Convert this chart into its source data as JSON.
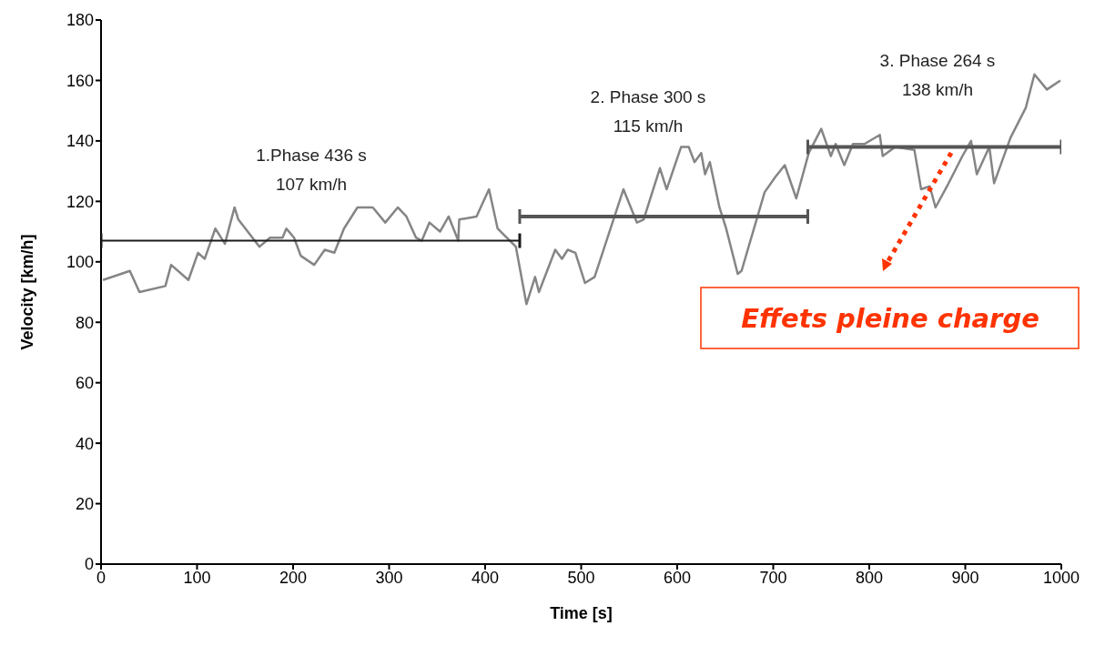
{
  "chart_data": {
    "type": "line",
    "xlabel": "Time [s]",
    "ylabel": "Velocity [km/h]",
    "xlim": [
      0,
      1000
    ],
    "ylim": [
      0,
      180
    ],
    "xticks": [
      0,
      100,
      200,
      300,
      400,
      500,
      600,
      700,
      800,
      900,
      1000
    ],
    "yticks": [
      0,
      20,
      40,
      60,
      80,
      100,
      120,
      140,
      160,
      180
    ],
    "grid": false,
    "marker": "none",
    "line_style": "solid",
    "series": [
      {
        "color": "#858585",
        "x": [
          2,
          30,
          40,
          67,
          73,
          91,
          101,
          108,
          119,
          129,
          139,
          143,
          165,
          176,
          189,
          193,
          201,
          208,
          222,
          233,
          243,
          253,
          267,
          283,
          296,
          309,
          318,
          328,
          334,
          342,
          353,
          362,
          372,
          373,
          391,
          404,
          413,
          432,
          443,
          452,
          456,
          473,
          480,
          486,
          494,
          504,
          514,
          544,
          558,
          565,
          582,
          589,
          604,
          612,
          618,
          625,
          629,
          634,
          644,
          651,
          663,
          667,
          691,
          702,
          712,
          724,
          737,
          750,
          760,
          765,
          774,
          783,
          795,
          811,
          814,
          827,
          847,
          854,
          863,
          869,
          881,
          897,
          906,
          912,
          925,
          930,
          947,
          963,
          972,
          985,
          999
        ],
        "values": [
          94,
          97,
          90,
          92,
          99,
          94,
          103,
          101,
          111,
          106,
          118,
          114,
          105,
          108,
          108,
          111,
          108,
          102,
          99,
          104,
          103,
          111,
          118,
          118,
          113,
          118,
          115,
          108,
          107,
          113,
          110,
          115,
          107,
          114,
          115,
          124,
          111,
          105,
          86,
          95,
          90,
          104,
          101,
          104,
          103,
          93,
          95,
          124,
          113,
          114,
          131,
          124,
          138,
          138,
          133,
          136,
          129,
          133,
          118,
          111,
          96,
          97,
          123,
          128,
          132,
          121,
          136,
          144,
          135,
          139,
          132,
          139,
          139,
          142,
          135,
          138,
          137,
          124,
          125,
          118,
          125,
          135,
          140,
          129,
          138,
          126,
          141,
          151,
          162,
          157,
          160
        ]
      },
      {
        "color": "#1a1a1a",
        "x": [
          0,
          436
        ],
        "values": [
          107,
          107
        ]
      },
      {
        "color": "#555555",
        "x": [
          436,
          736
        ],
        "values": [
          115,
          115
        ]
      },
      {
        "color": "#555555",
        "x": [
          736,
          1000
        ],
        "values": [
          138,
          138
        ]
      }
    ],
    "annotations": [
      "1.Phase 436 s\n107 km/h",
      "2. Phase 300 s\n115 km/h",
      "3. Phase 264 s\n138 km/h",
      "Effets pleine charge"
    ]
  }
}
